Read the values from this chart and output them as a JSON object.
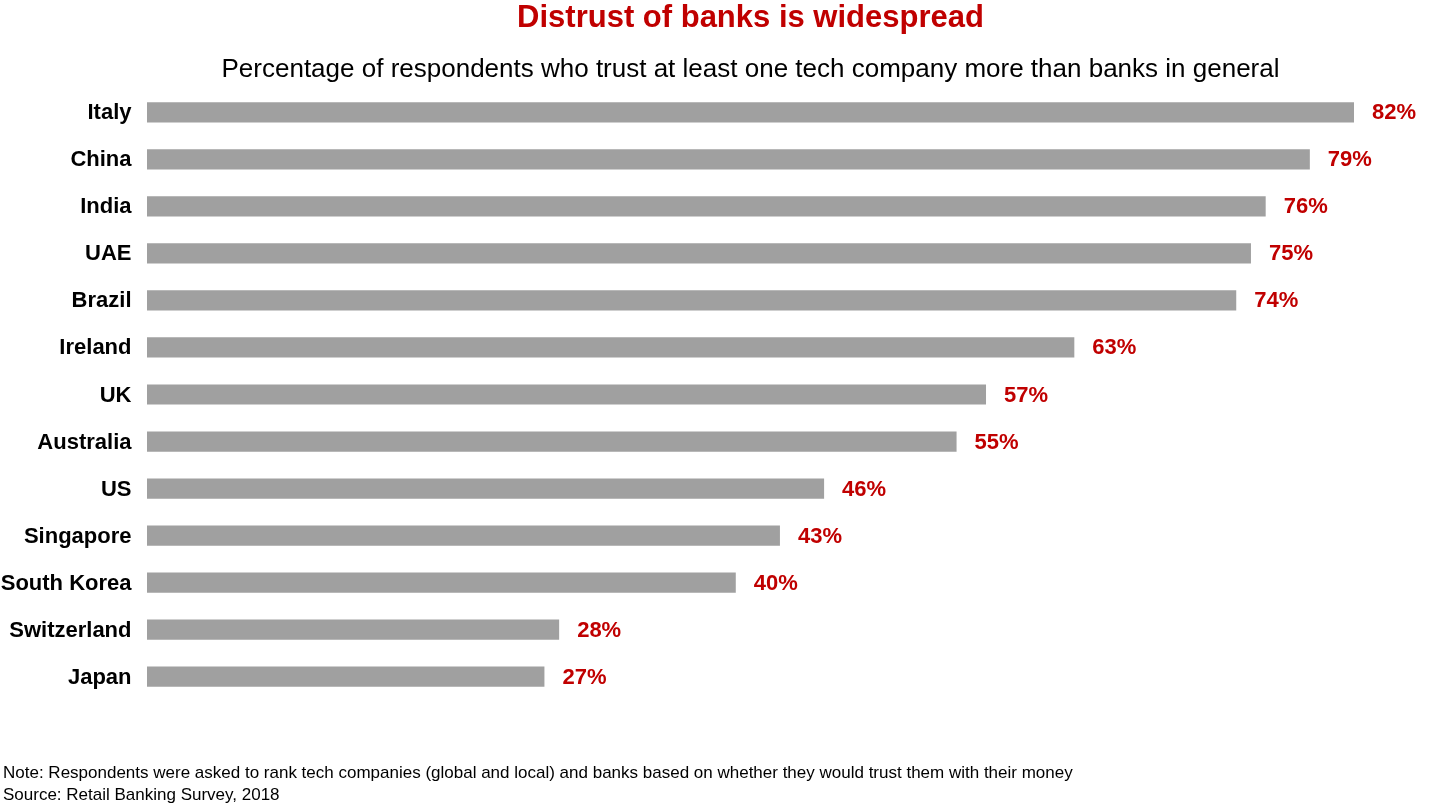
{
  "chart_data": {
    "type": "bar",
    "orientation": "horizontal",
    "title": "Distrust of banks is widespread",
    "subtitle": "Percentage of respondents who trust at least one tech company more than banks in general",
    "categories": [
      "Italy",
      "China",
      "India",
      "UAE",
      "Brazil",
      "Ireland",
      "UK",
      "Australia",
      "US",
      "Singapore",
      "South Korea",
      "Switzerland",
      "Japan"
    ],
    "values": [
      82,
      79,
      76,
      75,
      74,
      63,
      57,
      55,
      46,
      43,
      40,
      28,
      27
    ],
    "value_labels": [
      "82%",
      "79%",
      "76%",
      "75%",
      "74%",
      "63%",
      "57%",
      "55%",
      "46%",
      "43%",
      "40%",
      "28%",
      "27%"
    ],
    "color": "#a0a0a0",
    "annotations": [
      "Note: Respondents were asked to rank tech companies (global and local) and banks based on whether they would trust them with their money",
      "Source: Retail Banking Survey, 2018"
    ]
  }
}
